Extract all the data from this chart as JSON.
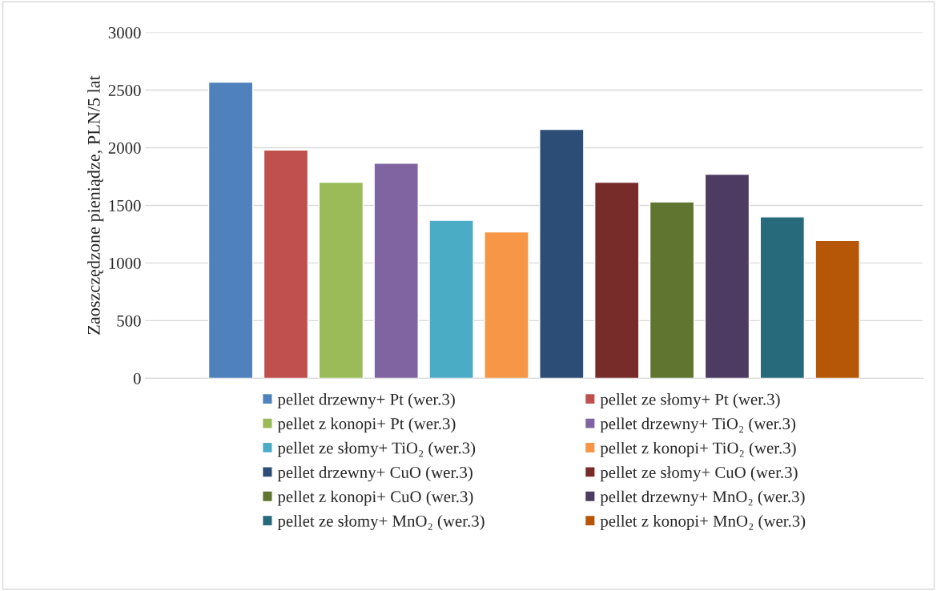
{
  "chart_data": {
    "type": "bar",
    "ylabel": "Zaoszczędzone pieniądze, PLN/5 lat",
    "categories": [
      null
    ],
    "series": [
      {
        "name": "pellet drzewny+ Pt (wer.3)",
        "color": "#4f81bd",
        "values": [
          2570
        ]
      },
      {
        "name": "pellet ze słomy+ Pt (wer.3)",
        "color": "#c0504d",
        "values": [
          1980
        ]
      },
      {
        "name": "pellet z konopi+ Pt (wer.3)",
        "color": "#9bbb59",
        "values": [
          1700
        ]
      },
      {
        "name": "pellet drzewny+ TiO₂ (wer.3)",
        "color": "#8064a2",
        "values": [
          1865
        ]
      },
      {
        "name": "pellet ze słomy+ TiO₂ (wer.3)",
        "color": "#4bacc6",
        "values": [
          1370
        ]
      },
      {
        "name": "pellet z konopi+ TiO₂ (wer.3)",
        "color": "#f79646",
        "values": [
          1270
        ]
      },
      {
        "name": "pellet drzewny+ CuO (wer.3)",
        "color": "#2c4d75",
        "values": [
          2160
        ]
      },
      {
        "name": "pellet ze słomy+ CuO (wer.3)",
        "color": "#772c2a",
        "values": [
          1700
        ]
      },
      {
        "name": "pellet z konopi+ CuO (wer.3)",
        "color": "#5f7530",
        "values": [
          1530
        ]
      },
      {
        "name": "pellet drzewny+ MnO₂ (wer.3)",
        "color": "#4d3b62",
        "values": [
          1770
        ]
      },
      {
        "name": "pellet ze słomy+ MnO₂ (wer.3)",
        "color": "#276a7c",
        "values": [
          1400
        ]
      },
      {
        "name": "pellet z konopi+ MnO₂ (wer.3)",
        "color": "#b65708",
        "values": [
          1195
        ]
      }
    ],
    "ylim": [
      0,
      3000
    ],
    "yticks": [
      0,
      500,
      1000,
      1500,
      2000,
      2500,
      3000
    ],
    "grid": "y",
    "legend": "bottom"
  }
}
